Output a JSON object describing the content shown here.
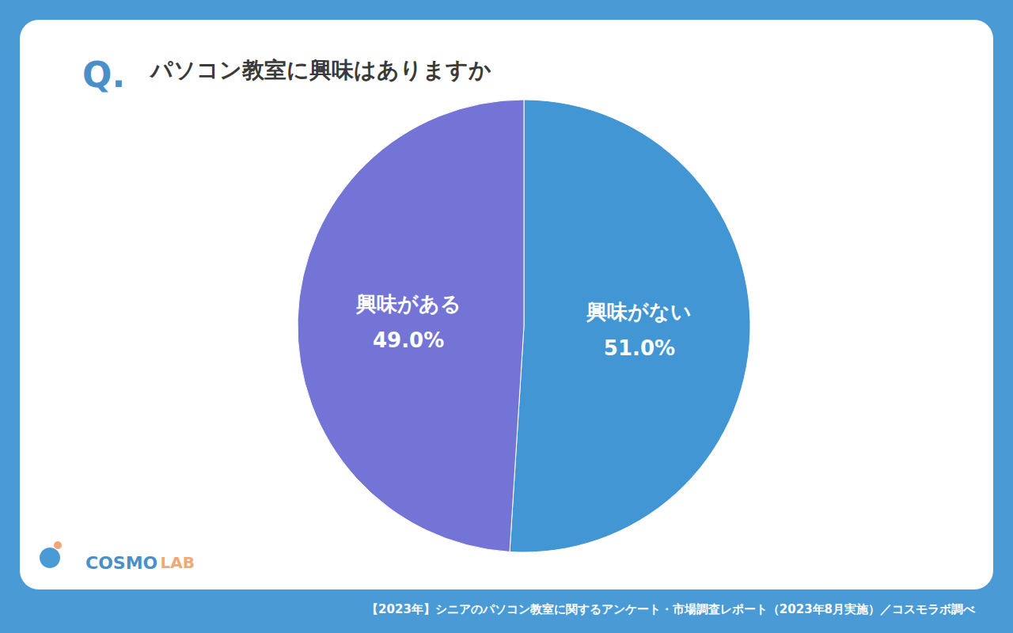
{
  "chart_data": {
    "type": "pie",
    "title_prefix": "Q.",
    "title": "パソコン教室に興味はありますか",
    "categories": [
      "興味がない",
      "興味がある"
    ],
    "values": [
      51.0,
      49.0
    ],
    "value_labels": [
      "51.0%",
      "49.0%"
    ],
    "colors": [
      "#4196d3",
      "#7474d6"
    ],
    "data_labels": true,
    "source": "【2023年】シニアのパソコン教室に関するアンケート・市場調査レポート（2023年8月実施）／コスモラボ調べ",
    "logo": "COSMO LAB"
  }
}
